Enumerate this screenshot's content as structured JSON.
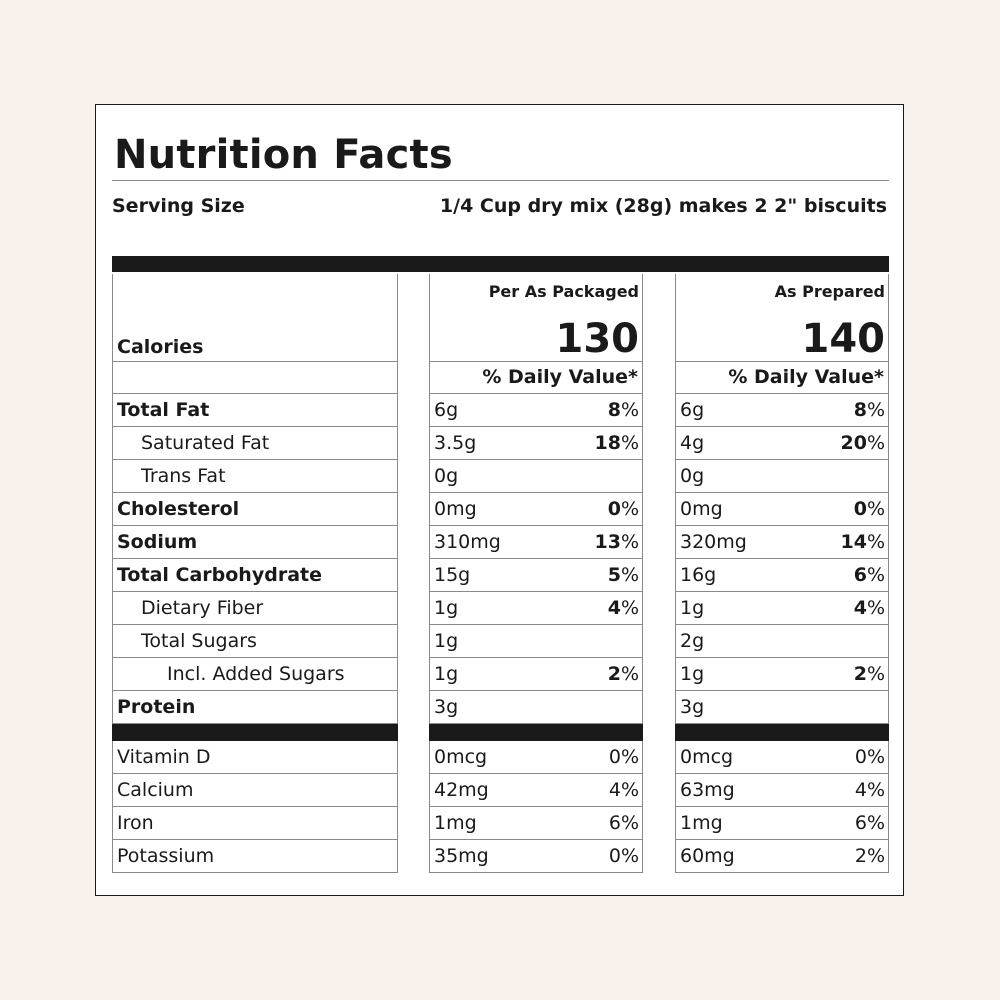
{
  "title": "Nutrition Facts",
  "serving": {
    "label": "Serving Size",
    "value": "1/4 Cup dry mix (28g) makes 2 2\" biscuits"
  },
  "calories_label": "Calories",
  "packaged": {
    "header": "Per As Packaged",
    "calories": "130",
    "dv_header": "% Daily Value*"
  },
  "prepared": {
    "header": "As Prepared",
    "calories": "140",
    "dv_header": "% Daily Value*"
  },
  "nutrients": [
    {
      "name": "Total Fat",
      "pack_amt": "6g",
      "pack_pct": "8",
      "prep_amt": "6g",
      "prep_pct": "8"
    },
    {
      "name": "Saturated Fat",
      "pack_amt": "3.5g",
      "pack_pct": "18",
      "prep_amt": "4g",
      "prep_pct": "20"
    },
    {
      "name": "Trans Fat",
      "pack_amt": "0g",
      "pack_pct": "",
      "prep_amt": "0g",
      "prep_pct": ""
    },
    {
      "name": "Cholesterol",
      "pack_amt": "0mg",
      "pack_pct": "0",
      "prep_amt": "0mg",
      "prep_pct": "0"
    },
    {
      "name": "Sodium",
      "pack_amt": "310mg",
      "pack_pct": "13",
      "prep_amt": "320mg",
      "prep_pct": "14"
    },
    {
      "name": "Total Carbohydrate",
      "pack_amt": "15g",
      "pack_pct": "5",
      "prep_amt": "16g",
      "prep_pct": "6"
    },
    {
      "name": "Dietary Fiber",
      "pack_amt": "1g",
      "pack_pct": "4",
      "prep_amt": "1g",
      "prep_pct": "4"
    },
    {
      "name": "Total Sugars",
      "pack_amt": "1g",
      "pack_pct": "",
      "prep_amt": "2g",
      "prep_pct": ""
    },
    {
      "name": "Incl. Added Sugars",
      "pack_amt": "1g",
      "pack_pct": "2",
      "prep_amt": "1g",
      "prep_pct": "2"
    },
    {
      "name": "Protein",
      "pack_amt": "3g",
      "pack_pct": "",
      "prep_amt": "3g",
      "prep_pct": ""
    }
  ],
  "vitamins": [
    {
      "name": "Vitamin D",
      "pack_amt": "0mcg",
      "pack_pct": "0",
      "prep_amt": "0mcg",
      "prep_pct": "0"
    },
    {
      "name": "Calcium",
      "pack_amt": "42mg",
      "pack_pct": "4",
      "prep_amt": "63mg",
      "prep_pct": "4"
    },
    {
      "name": "Iron",
      "pack_amt": "1mg",
      "pack_pct": "6",
      "prep_amt": "1mg",
      "prep_pct": "6"
    },
    {
      "name": "Potassium",
      "pack_amt": "35mg",
      "pack_pct": "0",
      "prep_amt": "60mg",
      "prep_pct": "2"
    }
  ],
  "pct_sign": "%"
}
